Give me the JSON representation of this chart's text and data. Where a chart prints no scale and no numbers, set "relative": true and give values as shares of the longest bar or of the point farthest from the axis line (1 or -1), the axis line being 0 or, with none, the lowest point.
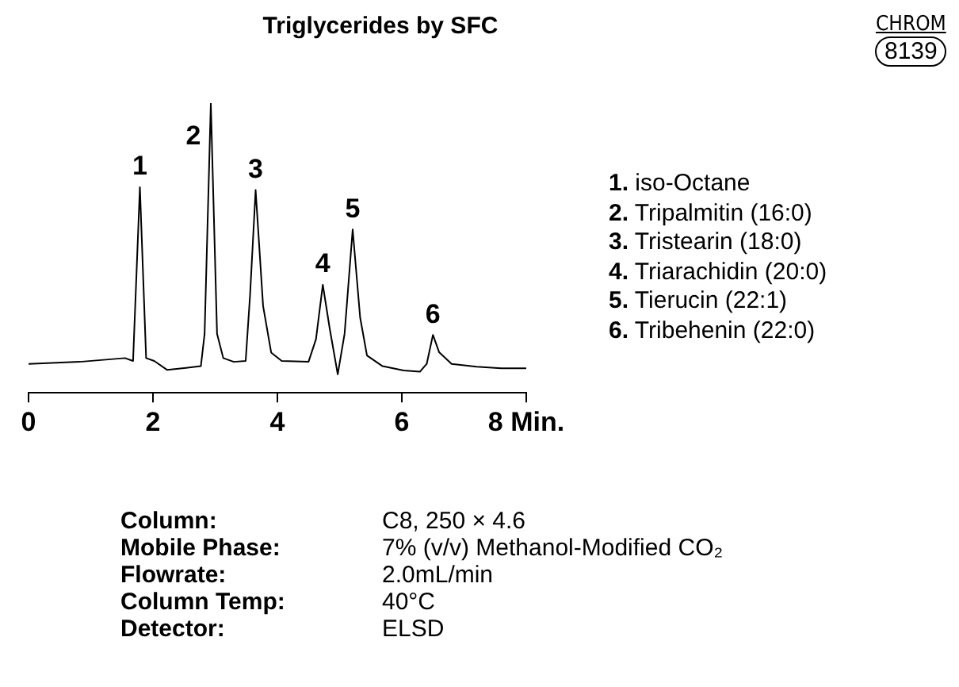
{
  "chart_data": {
    "type": "line",
    "title": "Triglycerides by SFC",
    "relative": true,
    "xlim": [
      0,
      8
    ],
    "xticks": [
      0,
      2,
      4,
      6,
      {
        "value": 8,
        "label": "8 Min."
      }
    ],
    "grid": false,
    "legend": false,
    "marker": "none",
    "line_style": "solid",
    "x": [
      0,
      0.82,
      1.55,
      1.68,
      1.79,
      1.89,
      2.02,
      2.23,
      2.53,
      2.77,
      2.83,
      2.93,
      3.03,
      3.13,
      3.3,
      3.49,
      3.56,
      3.65,
      3.77,
      3.9,
      4.07,
      4.5,
      4.62,
      4.73,
      4.84,
      4.97,
      5.08,
      5.21,
      5.33,
      5.44,
      5.69,
      6.03,
      6.29,
      6.4,
      6.5,
      6.6,
      6.8,
      7.2,
      7.6,
      8
    ],
    "series": [
      {
        "color": "#000000",
        "values": [
          0.1,
          0.107,
          0.12,
          0.11,
          0.71,
          0.12,
          0.11,
          0.079,
          0.086,
          0.092,
          0.204,
          1.0,
          0.204,
          0.12,
          0.107,
          0.11,
          0.335,
          0.7,
          0.3,
          0.139,
          0.11,
          0.107,
          0.185,
          0.373,
          0.223,
          0.064,
          0.204,
          0.564,
          0.26,
          0.129,
          0.092,
          0.077,
          0.073,
          0.1,
          0.2,
          0.14,
          0.1,
          0.09,
          0.085,
          0.085
        ]
      }
    ],
    "annotations": [
      {
        "text": "1",
        "x": 1.79,
        "y": 0.71
      },
      {
        "text": "2",
        "x": 2.93,
        "y": 1.0
      },
      {
        "text": "3",
        "x": 3.65,
        "y": 0.7
      },
      {
        "text": "4",
        "x": 4.73,
        "y": 0.373
      },
      {
        "text": "5",
        "x": 5.21,
        "y": 0.564
      },
      {
        "text": "6",
        "x": 6.5,
        "y": 0.2
      },
      "CHROM",
      "8139",
      "1. iso-Octane",
      "2. Tripalmitin (16:0)",
      "3. Tristearin (18:0)",
      "4. Triarachidin (20:0)",
      "5. Tierucin (22:1)",
      "6. Tribehenin (22:0)",
      "Column: C8, 250 × 4.6",
      "Mobile Phase: 7% (v/v) Methanol-Modified CO₂",
      "Flowrate: 2.0mL/min",
      "Column Temp: 40°C",
      "Detector: ELSD"
    ]
  }
}
